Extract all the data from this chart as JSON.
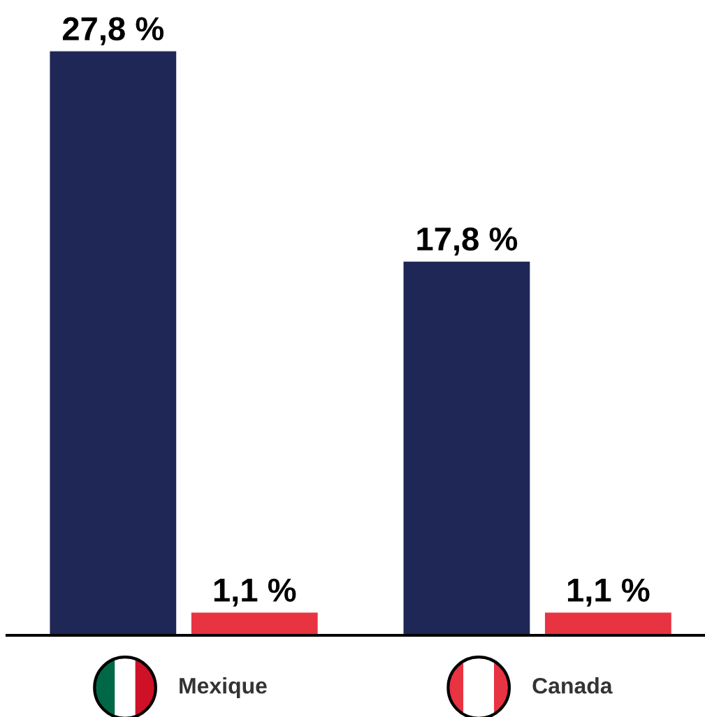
{
  "chart_data": {
    "type": "bar",
    "categories": [
      "Mexique",
      "Canada"
    ],
    "series": [
      {
        "color": "#1e2756",
        "values": [
          27.8,
          17.8
        ],
        "value_labels": [
          "27,8 %",
          "17,8 %"
        ]
      },
      {
        "color": "#e83341",
        "values": [
          1.1,
          1.1
        ],
        "value_labels": [
          "1,1 %",
          "1,1 %"
        ]
      }
    ],
    "legend": false
  }
}
